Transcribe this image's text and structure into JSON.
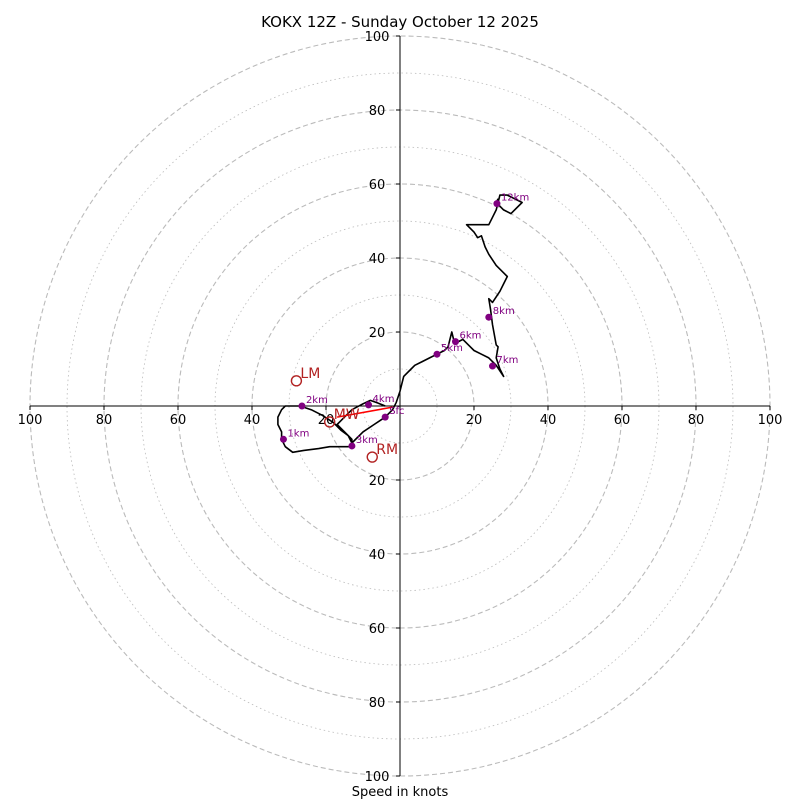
{
  "chart_data": {
    "type": "hodograph",
    "title": "KOKX 12Z - Sunday October 12 2025",
    "xlabel": "Speed in knots",
    "units": "knots",
    "range": [
      -100,
      100
    ],
    "rings": [
      10,
      20,
      30,
      40,
      50,
      60,
      70,
      80,
      90,
      100
    ],
    "tick_labels": {
      "x_left": [
        "100",
        "80",
        "60",
        "40",
        "20"
      ],
      "x_right": [
        "20",
        "40",
        "60",
        "80",
        "100"
      ],
      "y_top": [
        "100",
        "80",
        "60",
        "40",
        "20"
      ],
      "y_bottom": [
        "20",
        "40",
        "60",
        "80",
        "100"
      ]
    },
    "colors": {
      "trace": "#000000",
      "height_marker": "#800080",
      "motion": "#b22222",
      "shear": "#ff0000",
      "grid": "#bbbbbb"
    },
    "trace": [
      [
        -4,
        0
      ],
      [
        -6,
        0.8
      ],
      [
        -8,
        1.5
      ],
      [
        -10,
        0.6
      ],
      [
        -13,
        -1
      ],
      [
        -15,
        -3
      ],
      [
        -16,
        -4
      ],
      [
        -17,
        -5
      ],
      [
        -16,
        -6
      ],
      [
        -14,
        -8
      ],
      [
        -13,
        -9
      ],
      [
        -13,
        -11
      ],
      [
        -16,
        -11
      ],
      [
        -19,
        -11
      ],
      [
        -22,
        -11.5
      ],
      [
        -26,
        -12
      ],
      [
        -29,
        -12.5
      ],
      [
        -31,
        -11
      ],
      [
        -32,
        -9
      ],
      [
        -32,
        -7
      ],
      [
        -33,
        -5
      ],
      [
        -33,
        -3
      ],
      [
        -32,
        -1
      ],
      [
        -31,
        0
      ],
      [
        -29,
        0
      ],
      [
        -27,
        0
      ],
      [
        -24,
        -1
      ],
      [
        -21,
        -2.5
      ],
      [
        -18,
        -4.5
      ],
      [
        -16,
        -6.5
      ],
      [
        -14,
        -8
      ],
      [
        -13,
        -10
      ],
      [
        -10,
        -7
      ],
      [
        -7,
        -5
      ],
      [
        -4,
        -3
      ],
      [
        -2,
        -1
      ],
      [
        -1,
        1
      ],
      [
        0,
        4
      ],
      [
        1,
        8
      ],
      [
        3,
        10
      ],
      [
        4,
        11
      ],
      [
        6,
        12
      ],
      [
        8,
        13
      ],
      [
        10,
        14
      ],
      [
        12,
        15
      ],
      [
        13,
        16
      ],
      [
        13.5,
        18
      ],
      [
        14,
        20
      ],
      [
        14.5,
        18
      ],
      [
        15,
        17
      ],
      [
        17,
        18
      ],
      [
        19,
        16
      ],
      [
        20,
        15
      ],
      [
        22,
        14
      ],
      [
        24,
        13
      ],
      [
        26,
        11
      ],
      [
        28,
        8
      ],
      [
        27,
        10
      ],
      [
        26,
        13
      ],
      [
        26.5,
        16
      ],
      [
        26,
        16.5
      ],
      [
        25,
        22
      ],
      [
        24.5,
        26
      ],
      [
        24,
        29
      ],
      [
        25,
        28
      ],
      [
        27,
        31
      ],
      [
        28,
        33
      ],
      [
        29,
        35
      ],
      [
        28,
        36
      ],
      [
        26,
        38
      ],
      [
        24,
        41
      ],
      [
        23,
        43
      ],
      [
        22,
        46
      ],
      [
        21,
        45.5
      ],
      [
        20,
        47
      ],
      [
        18,
        49
      ],
      [
        22,
        49
      ],
      [
        24,
        49
      ],
      [
        25,
        51
      ],
      [
        26,
        53
      ],
      [
        26.5,
        55
      ],
      [
        27,
        57
      ],
      [
        29,
        57
      ],
      [
        31,
        56
      ],
      [
        33,
        55
      ],
      [
        30,
        52
      ],
      [
        28,
        53
      ],
      [
        26,
        55
      ],
      [
        26.5,
        56
      ]
    ],
    "height_markers": [
      {
        "label": "1km",
        "u": -31.5,
        "v": -9.0
      },
      {
        "label": "2km",
        "u": -26.5,
        "v": 0.0
      },
      {
        "label": "3km",
        "u": -13.0,
        "v": -10.8
      },
      {
        "label": "4km",
        "u": -8.5,
        "v": 0.3
      },
      {
        "label": "5km",
        "u": 10.0,
        "v": 14.0
      },
      {
        "label": "6km",
        "u": 15.0,
        "v": 17.4
      },
      {
        "label": "7km",
        "u": 25.0,
        "v": 10.8
      },
      {
        "label": "8km",
        "u": 24.0,
        "v": 24.0
      },
      {
        "label": "12km",
        "u": 26.2,
        "v": 54.7
      },
      {
        "label": "Sfc",
        "u": -4.0,
        "v": -3.0
      }
    ],
    "storm_motion": [
      {
        "label": "LM",
        "u": -28.0,
        "v": 6.8
      },
      {
        "label": "RM",
        "u": -7.5,
        "v": -13.8
      },
      {
        "label": "MW",
        "u": -19.0,
        "v": -4.3
      }
    ],
    "shear_vector": {
      "from": [
        -2.0,
        -0.3
      ],
      "to": [
        -17.0,
        -3.0
      ]
    }
  }
}
